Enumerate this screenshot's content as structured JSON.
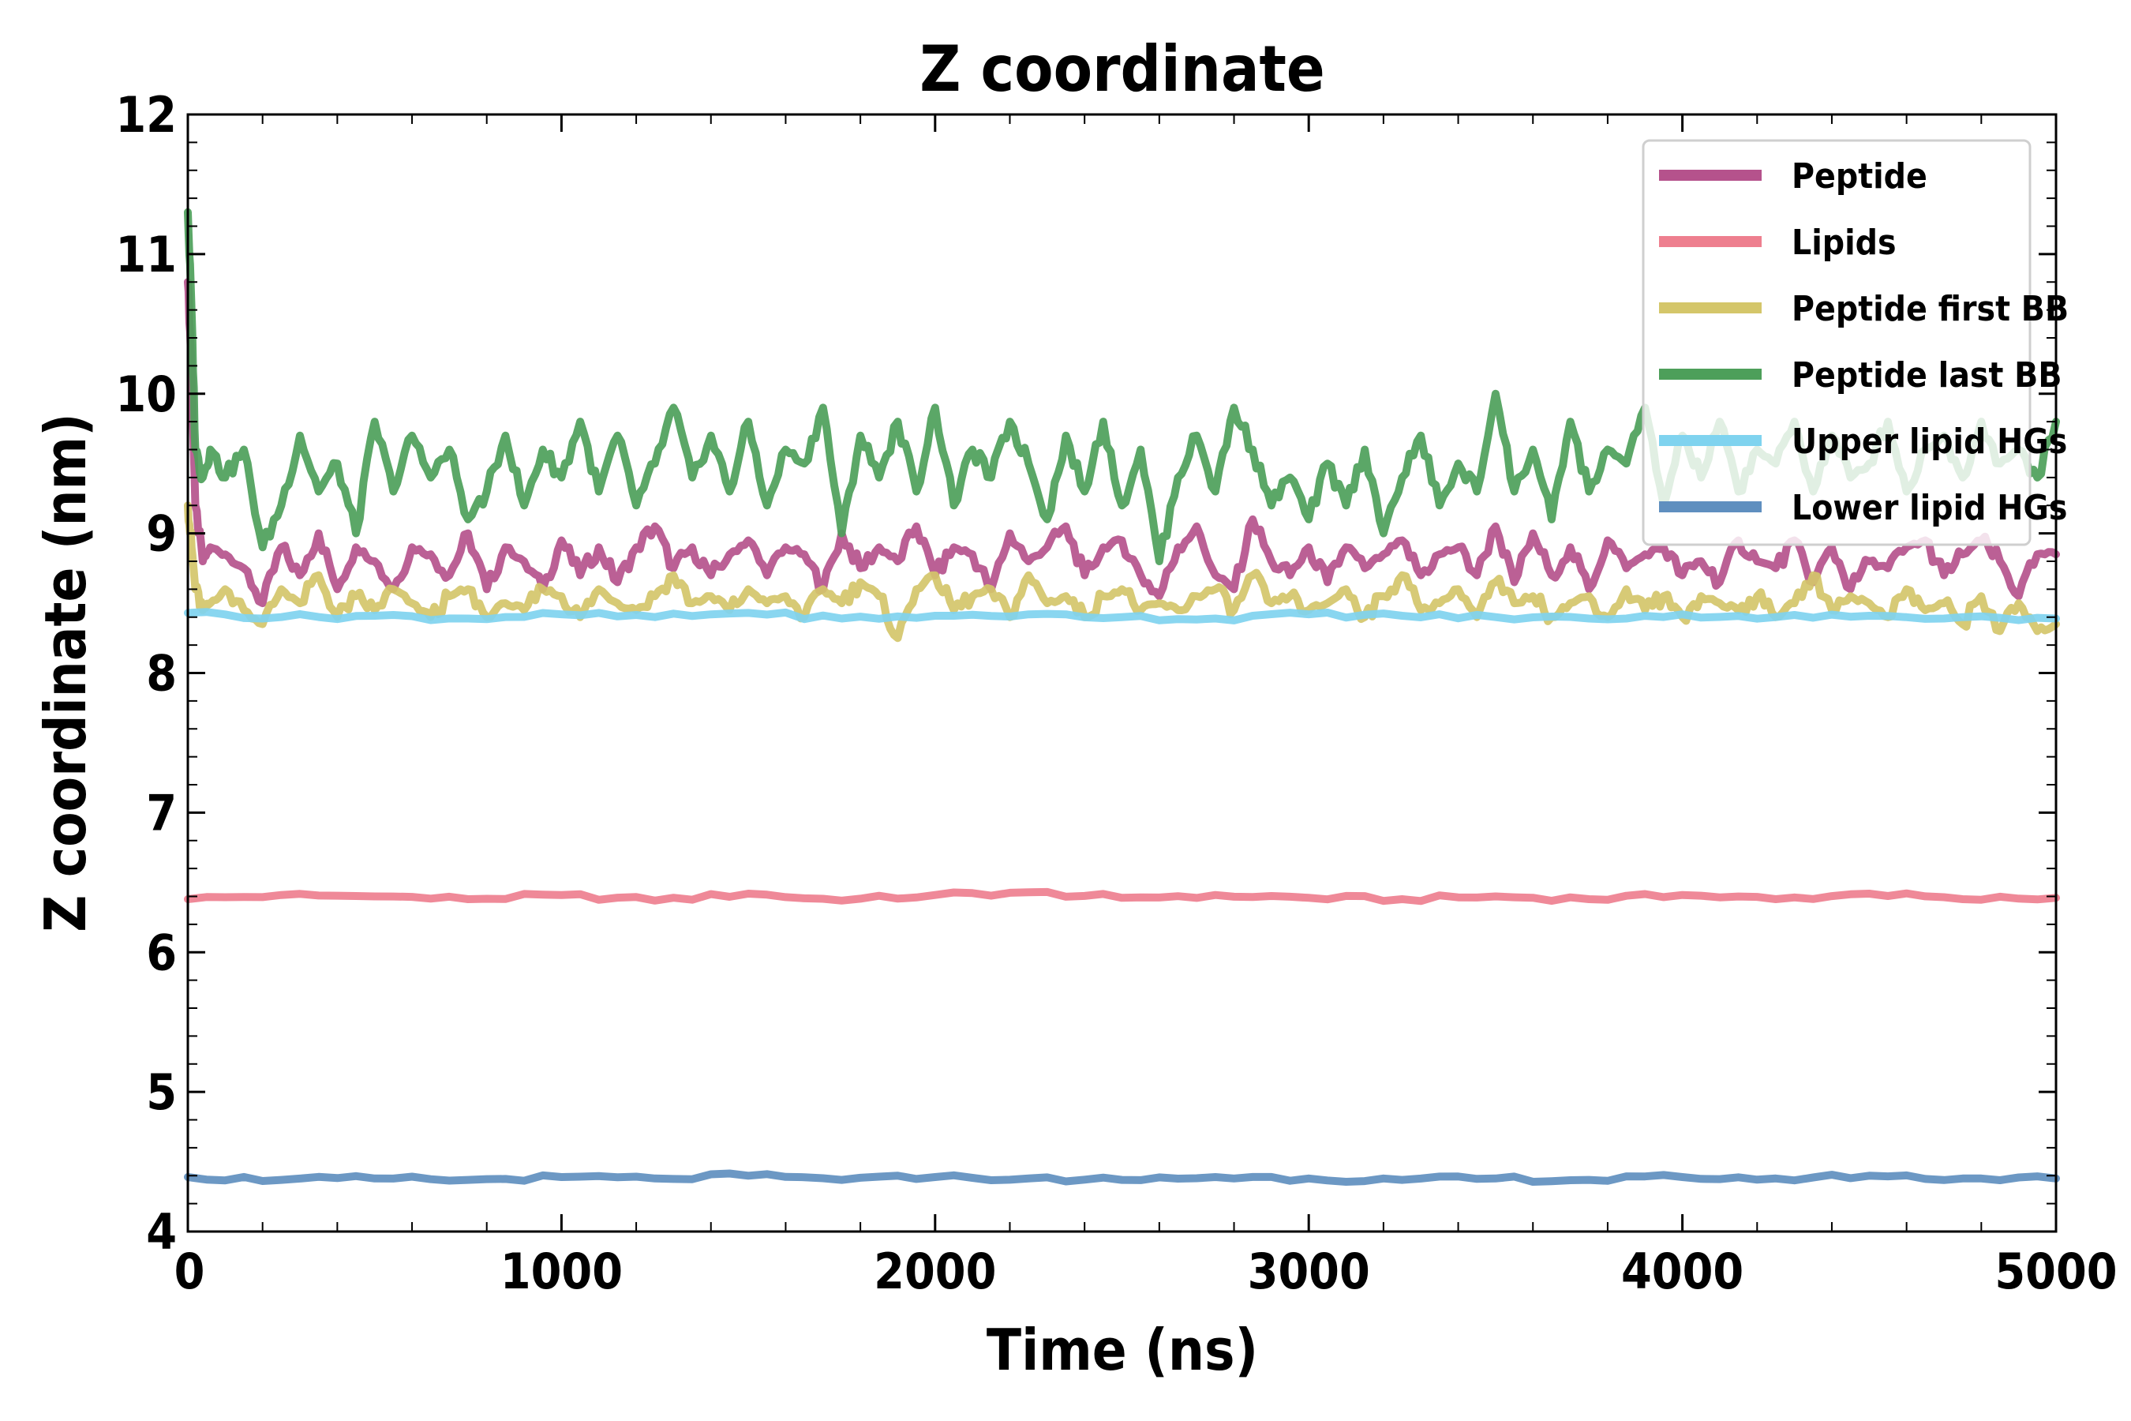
{
  "chart_data": {
    "type": "line",
    "title": "Z coordinate",
    "xlabel": "Time (ns)",
    "ylabel": "Z coordinate (nm)",
    "xlim": [
      0,
      5000
    ],
    "ylim": [
      4,
      12
    ],
    "xticks": [
      0,
      1000,
      2000,
      3000,
      4000,
      5000
    ],
    "yticks": [
      4,
      5,
      6,
      7,
      8,
      9,
      10,
      11,
      12
    ],
    "grid": false,
    "legend": "top-right",
    "series": [
      {
        "name": "Peptide",
        "color": "#b5528c",
        "x": [
          0,
          10,
          20,
          40,
          60,
          100,
          150,
          200,
          250,
          300,
          350,
          400,
          450,
          500,
          550,
          600,
          650,
          700,
          750,
          800,
          850,
          900,
          950,
          1000,
          1050,
          1100,
          1150,
          1200,
          1250,
          1300,
          1350,
          1400,
          1450,
          1500,
          1550,
          1600,
          1650,
          1700,
          1750,
          1800,
          1850,
          1900,
          1950,
          2000,
          2050,
          2100,
          2150,
          2200,
          2250,
          2300,
          2350,
          2400,
          2450,
          2500,
          2550,
          2600,
          2650,
          2700,
          2750,
          2800,
          2850,
          2900,
          2950,
          3000,
          3050,
          3100,
          3150,
          3200,
          3250,
          3300,
          3350,
          3400,
          3450,
          3500,
          3550,
          3600,
          3650,
          3700,
          3750,
          3800,
          3850,
          3900,
          3950,
          4000,
          4050,
          4100,
          4150,
          4200,
          4250,
          4300,
          4350,
          4400,
          4450,
          4500,
          4550,
          4600,
          4650,
          4700,
          4750,
          4800,
          4850,
          4900,
          4950,
          5000
        ],
        "y": [
          10.8,
          10.2,
          9.2,
          8.8,
          8.9,
          8.85,
          8.75,
          8.5,
          8.9,
          8.7,
          9.0,
          8.6,
          8.9,
          8.8,
          8.6,
          8.9,
          8.85,
          8.7,
          9.0,
          8.6,
          8.9,
          8.8,
          8.6,
          8.95,
          8.7,
          8.9,
          8.65,
          8.9,
          9.05,
          8.75,
          8.9,
          8.7,
          8.85,
          8.95,
          8.7,
          8.9,
          8.85,
          8.6,
          9.0,
          8.75,
          8.9,
          8.8,
          9.05,
          8.7,
          8.9,
          8.85,
          8.6,
          9.0,
          8.8,
          8.9,
          9.05,
          8.7,
          8.9,
          8.95,
          8.7,
          8.55,
          8.9,
          9.05,
          8.7,
          8.6,
          9.1,
          8.8,
          8.7,
          8.9,
          8.65,
          8.9,
          8.75,
          8.85,
          8.95,
          8.7,
          8.85,
          8.9,
          8.7,
          9.05,
          8.65,
          9.0,
          8.7,
          8.9,
          8.6,
          8.95,
          8.75,
          8.85,
          8.9,
          8.7,
          8.8,
          8.65,
          8.95,
          8.8,
          8.75,
          8.95,
          8.65,
          8.9,
          8.6,
          8.8,
          8.75,
          8.9,
          8.95,
          8.7,
          8.85,
          8.95,
          8.8,
          8.55,
          8.85,
          8.85
        ]
      },
      {
        "name": "Lipids",
        "color": "#ee7f8f",
        "x": [
          0,
          250,
          500,
          750,
          1000,
          1250,
          1500,
          1750,
          2000,
          2250,
          2500,
          2750,
          3000,
          3250,
          3500,
          3750,
          4000,
          4250,
          4500,
          4750,
          5000
        ],
        "y": [
          6.38,
          6.41,
          6.4,
          6.38,
          6.41,
          6.37,
          6.42,
          6.37,
          6.41,
          6.43,
          6.39,
          6.41,
          6.39,
          6.38,
          6.4,
          6.38,
          6.41,
          6.38,
          6.42,
          6.38,
          6.39
        ]
      },
      {
        "name": "Peptide first BB",
        "color": "#d4c66a",
        "x": [
          0,
          10,
          20,
          40,
          60,
          100,
          150,
          200,
          250,
          300,
          350,
          400,
          450,
          500,
          550,
          600,
          650,
          700,
          750,
          800,
          850,
          900,
          950,
          1000,
          1050,
          1100,
          1150,
          1200,
          1250,
          1300,
          1350,
          1400,
          1450,
          1500,
          1550,
          1600,
          1650,
          1700,
          1750,
          1800,
          1850,
          1900,
          1950,
          2000,
          2050,
          2100,
          2150,
          2200,
          2250,
          2300,
          2350,
          2400,
          2450,
          2500,
          2550,
          2600,
          2650,
          2700,
          2750,
          2800,
          2850,
          2900,
          2950,
          3000,
          3050,
          3100,
          3150,
          3200,
          3250,
          3300,
          3350,
          3400,
          3450,
          3500,
          3550,
          3600,
          3650,
          3700,
          3750,
          3800,
          3850,
          3900,
          3950,
          4000,
          4050,
          4100,
          4150,
          4200,
          4250,
          4300,
          4350,
          4400,
          4450,
          4500,
          4550,
          4600,
          4650,
          4700,
          4750,
          4800,
          4850,
          4900,
          4950,
          5000
        ],
        "y": [
          9.2,
          8.9,
          8.6,
          8.45,
          8.5,
          8.6,
          8.45,
          8.35,
          8.6,
          8.5,
          8.7,
          8.4,
          8.55,
          8.45,
          8.6,
          8.5,
          8.4,
          8.55,
          8.6,
          8.4,
          8.5,
          8.45,
          8.6,
          8.55,
          8.4,
          8.6,
          8.5,
          8.45,
          8.55,
          8.7,
          8.5,
          8.55,
          8.45,
          8.6,
          8.5,
          8.55,
          8.4,
          8.6,
          8.5,
          8.65,
          8.55,
          8.25,
          8.6,
          8.7,
          8.45,
          8.55,
          8.6,
          8.4,
          8.7,
          8.5,
          8.55,
          8.4,
          8.55,
          8.6,
          8.45,
          8.5,
          8.45,
          8.55,
          8.6,
          8.45,
          8.7,
          8.5,
          8.55,
          8.45,
          8.5,
          8.6,
          8.4,
          8.55,
          8.7,
          8.45,
          8.5,
          8.6,
          8.4,
          8.65,
          8.5,
          8.55,
          8.4,
          8.5,
          8.55,
          8.4,
          8.6,
          8.45,
          8.55,
          8.4,
          8.55,
          8.5,
          8.45,
          8.55,
          8.4,
          8.5,
          8.7,
          8.45,
          8.55,
          8.5,
          8.4,
          8.6,
          8.45,
          8.5,
          8.35,
          8.55,
          8.3,
          8.5,
          8.3,
          8.35
        ]
      },
      {
        "name": "Peptide last BB",
        "color": "#4d9f5a",
        "x": [
          0,
          10,
          20,
          40,
          60,
          100,
          150,
          200,
          250,
          300,
          350,
          400,
          450,
          500,
          550,
          600,
          650,
          700,
          750,
          800,
          850,
          900,
          950,
          1000,
          1050,
          1100,
          1150,
          1200,
          1250,
          1300,
          1350,
          1400,
          1450,
          1500,
          1550,
          1600,
          1650,
          1700,
          1750,
          1800,
          1850,
          1900,
          1950,
          2000,
          2050,
          2100,
          2150,
          2200,
          2250,
          2300,
          2350,
          2400,
          2450,
          2500,
          2550,
          2600,
          2650,
          2700,
          2750,
          2800,
          2850,
          2900,
          2950,
          3000,
          3050,
          3100,
          3150,
          3200,
          3250,
          3300,
          3350,
          3400,
          3450,
          3500,
          3550,
          3600,
          3650,
          3700,
          3750,
          3800,
          3850,
          3900,
          3950,
          4000,
          4050,
          4100,
          4150,
          4200,
          4250,
          4300,
          4350,
          4400,
          4450,
          4500,
          4550,
          4600,
          4650,
          4700,
          4750,
          4800,
          4850,
          4900,
          4950,
          5000
        ],
        "y": [
          11.3,
          10.6,
          9.6,
          9.4,
          9.6,
          9.4,
          9.6,
          8.9,
          9.2,
          9.7,
          9.3,
          9.5,
          9.0,
          9.8,
          9.3,
          9.7,
          9.4,
          9.6,
          9.1,
          9.3,
          9.7,
          9.2,
          9.6,
          9.4,
          9.8,
          9.3,
          9.7,
          9.2,
          9.5,
          9.9,
          9.4,
          9.7,
          9.3,
          9.8,
          9.2,
          9.6,
          9.5,
          9.9,
          9.0,
          9.7,
          9.4,
          9.8,
          9.3,
          9.9,
          9.2,
          9.6,
          9.4,
          9.8,
          9.5,
          9.1,
          9.7,
          9.3,
          9.8,
          9.2,
          9.6,
          8.8,
          9.4,
          9.7,
          9.3,
          9.9,
          9.6,
          9.2,
          9.4,
          9.1,
          9.5,
          9.2,
          9.6,
          9.0,
          9.4,
          9.7,
          9.2,
          9.5,
          9.3,
          10.0,
          9.3,
          9.6,
          9.1,
          9.8,
          9.3,
          9.6,
          9.5,
          9.9,
          9.2,
          9.7,
          9.4,
          9.8,
          9.3,
          9.6,
          9.5,
          9.8,
          9.3,
          9.7,
          9.4,
          9.5,
          9.8,
          9.3,
          9.6,
          9.7,
          9.4,
          9.8,
          9.5,
          9.6,
          9.4,
          9.8
        ]
      },
      {
        "name": "Upper lipid HGs",
        "color": "#7fd3ef",
        "x": [
          0,
          250,
          500,
          750,
          1000,
          1250,
          1500,
          1750,
          2000,
          2250,
          2500,
          2750,
          3000,
          3250,
          3500,
          3750,
          4000,
          4250,
          4500,
          4750,
          5000
        ],
        "y": [
          8.43,
          8.4,
          8.41,
          8.39,
          8.42,
          8.4,
          8.43,
          8.39,
          8.41,
          8.42,
          8.4,
          8.39,
          8.42,
          8.41,
          8.4,
          8.39,
          8.42,
          8.4,
          8.41,
          8.4,
          8.39
        ]
      },
      {
        "name": "Lower lipid HGs",
        "color": "#5f8fbf",
        "x": [
          0,
          250,
          500,
          750,
          1000,
          1250,
          1500,
          1750,
          2000,
          2250,
          2500,
          2750,
          3000,
          3250,
          3500,
          3750,
          4000,
          4250,
          4500,
          4750,
          5000
        ],
        "y": [
          4.39,
          4.37,
          4.38,
          4.37,
          4.39,
          4.38,
          4.4,
          4.37,
          4.39,
          4.38,
          4.37,
          4.39,
          4.38,
          4.37,
          4.38,
          4.37,
          4.39,
          4.38,
          4.4,
          4.38,
          4.38
        ]
      }
    ]
  }
}
